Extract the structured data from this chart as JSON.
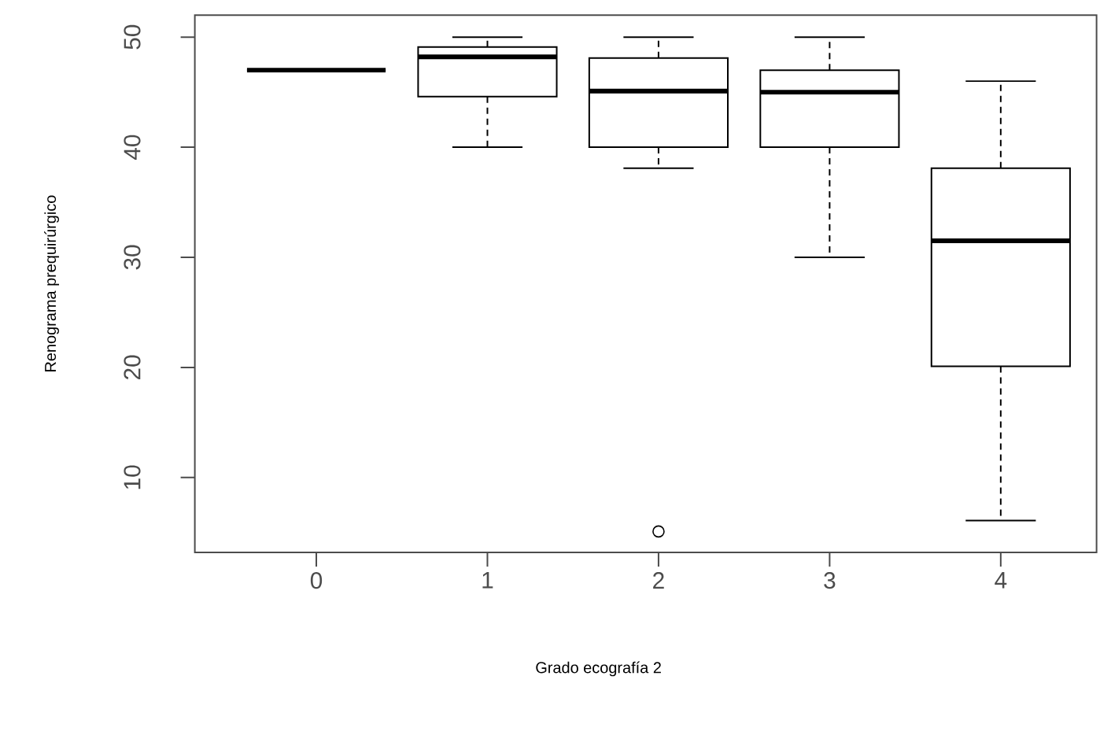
{
  "chart_data": {
    "type": "box",
    "xlabel": "Grado ecografía 2",
    "ylabel": "Renograma prequirúrgico",
    "categories": [
      "0",
      "1",
      "2",
      "3",
      "4"
    ],
    "boxes": [
      {
        "low": 47,
        "q1": 47,
        "median": 47,
        "q3": 47,
        "high": 47
      },
      {
        "low": 40,
        "q1": 44.6,
        "median": 48.2,
        "q3": 49.1,
        "high": 50
      },
      {
        "low": 38.1,
        "q1": 40,
        "median": 45.1,
        "q3": 48.1,
        "high": 50,
        "outliers": [
          5.1
        ]
      },
      {
        "low": 30,
        "q1": 40,
        "median": 45,
        "q3": 47,
        "high": 50
      },
      {
        "low": 6.1,
        "q1": 20.1,
        "median": 31.5,
        "q3": 38.1,
        "high": 46
      }
    ],
    "ylim": [
      3.2,
      52
    ],
    "yticks": [
      10,
      20,
      30,
      40,
      50
    ]
  }
}
